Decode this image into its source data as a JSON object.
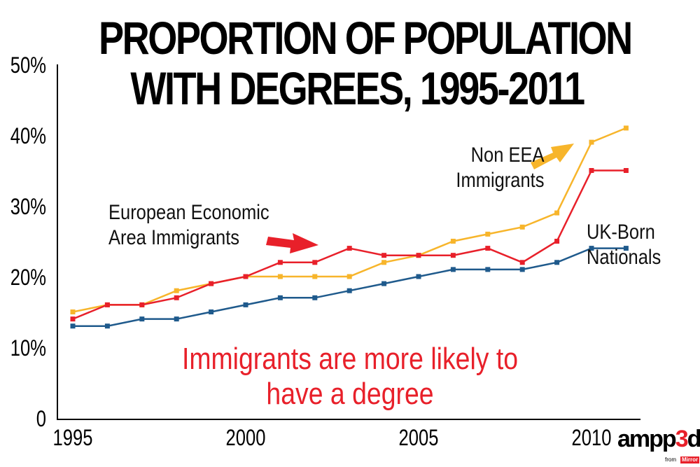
{
  "chart_data": {
    "type": "line",
    "title": "PROPORTION OF POPULATION WITH DEGREES, 1995-2011",
    "x": [
      1995,
      1996,
      1997,
      1998,
      1999,
      2000,
      2001,
      2002,
      2003,
      2004,
      2005,
      2006,
      2007,
      2008,
      2009,
      2010,
      2011
    ],
    "xlim": [
      1995,
      2011
    ],
    "ylim": [
      0,
      50
    ],
    "x_ticks": [
      "1995",
      "2000",
      "2005",
      "2010"
    ],
    "y_ticks": [
      "0",
      "10%",
      "20%",
      "30%",
      "40%",
      "50%"
    ],
    "grid": false,
    "series": [
      {
        "name": "UK-Born Nationals",
        "color": "#1f5a8c",
        "values": [
          13,
          13,
          14,
          14,
          15,
          16,
          17,
          17,
          18,
          19,
          20,
          21,
          21,
          21,
          22,
          24,
          24
        ]
      },
      {
        "name": "European Economic Area Immigrants",
        "color": "#e8202a",
        "values": [
          14,
          16,
          16,
          17,
          19,
          20,
          22,
          22,
          24,
          23,
          23,
          23,
          24,
          22,
          25,
          35,
          35
        ]
      },
      {
        "name": "Non EEA Immigrants",
        "color": "#f7b52b",
        "values": [
          15,
          16,
          16,
          18,
          19,
          20,
          20,
          20,
          20,
          22,
          23,
          25,
          26,
          27,
          29,
          39,
          41
        ]
      }
    ],
    "annotations": {
      "eea": [
        "European Economic",
        "Area Immigrants"
      ],
      "noneea": [
        "Non EEA",
        "Immigrants"
      ],
      "uk": [
        "UK-Born",
        "Nationals"
      ],
      "note": [
        "Immigrants are more likely to",
        "have a degree"
      ]
    }
  },
  "title_lines": [
    "PROPORTION OF POPULATION",
    "WITH DEGREES, 1995-2011"
  ],
  "logo": {
    "name": "ampp3d",
    "from": "from",
    "mirror": "Mirror"
  }
}
